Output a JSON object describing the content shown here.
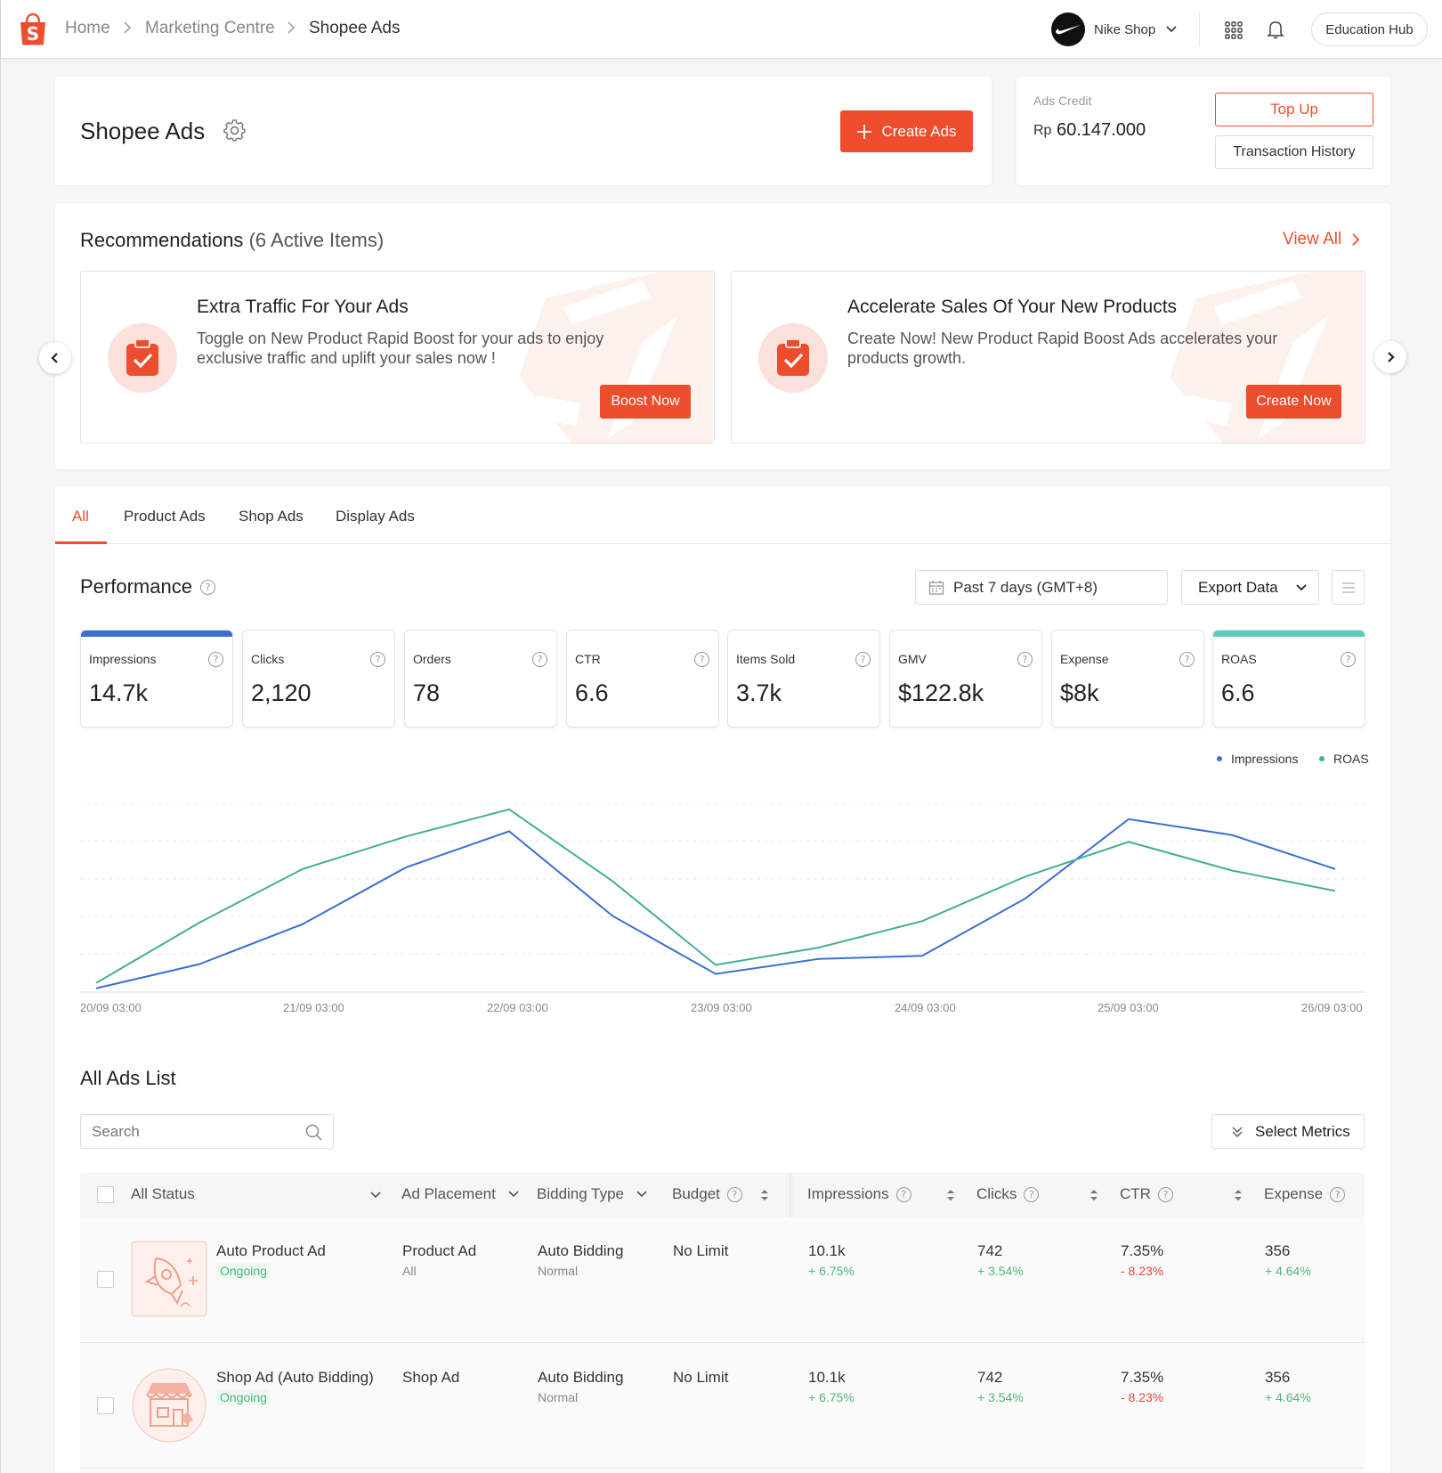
{
  "breadcrumb": {
    "home": "Home",
    "marketing": "Marketing Centre",
    "current": "Shopee Ads"
  },
  "header": {
    "shop_name": "Nike Shop",
    "education_hub": "Education Hub"
  },
  "ads_header": {
    "title": "Shopee Ads",
    "create_label": "Create Ads"
  },
  "credit": {
    "label": "Ads Credit",
    "currency": "Rp",
    "amount": "60.147.000",
    "top_up": "Top Up",
    "history": "Transaction History"
  },
  "recommendations": {
    "title": "Recommendations",
    "count_text": "(6 Active Items)",
    "view_all": "View All",
    "items": [
      {
        "title": "Extra Traffic For Your Ads",
        "desc": "Toggle on New Product Rapid Boost for your ads to enjoy exclusive traffic and uplift your sales now !",
        "button": "Boost Now"
      },
      {
        "title": "Accelerate Sales Of Your New Products",
        "desc": "Create Now! New Product Rapid Boost Ads accelerates your products growth.",
        "button": "Create Now"
      }
    ]
  },
  "tabs": [
    "All",
    "Product Ads",
    "Shop Ads",
    "Display Ads"
  ],
  "performance": {
    "title": "Performance",
    "date_range": "Past 7 days (GMT+8)",
    "export": "Export Data",
    "metrics": [
      {
        "label": "Impressions",
        "value": "14.7k",
        "bar_color": "#3b6fd4"
      },
      {
        "label": "Clicks",
        "value": "2,120"
      },
      {
        "label": "Orders",
        "value": "78"
      },
      {
        "label": "CTR",
        "value": "6.6"
      },
      {
        "label": "Items Sold",
        "value": "3.7k"
      },
      {
        "label": "GMV",
        "value": "$122.8k"
      },
      {
        "label": "Expense",
        "value": "$8k"
      },
      {
        "label": "ROAS",
        "value": "6.6",
        "bar_color": "#5ccbb8"
      }
    ]
  },
  "chart_data": {
    "type": "line",
    "x": [
      "20/09 03:00",
      "",
      "21/09 03:00",
      "",
      "22/09 03:00",
      "",
      "23/09 03:00",
      "",
      "24/09 03:00",
      "",
      "25/09 03:00",
      "",
      "26/09 03:00"
    ],
    "tick_labels": [
      "20/09 03:00",
      "21/09 03:00",
      "22/09 03:00",
      "23/09 03:00",
      "24/09 03:00",
      "25/09 03:00",
      "26/09 03:00"
    ],
    "series": [
      {
        "name": "Impressions",
        "color": "#3b6fd4",
        "values": [
          0.5,
          3.7,
          9.0,
          16.5,
          21.3,
          10.1,
          2.4,
          4.4,
          4.8,
          12.4,
          22.9,
          20.8,
          16.3
        ]
      },
      {
        "name": "ROAS",
        "color": "#44ad96",
        "values": [
          1.2,
          9.2,
          16.3,
          20.6,
          24.2,
          14.7,
          3.6,
          5.9,
          9.4,
          15.3,
          19.9,
          16.1,
          13.4
        ]
      }
    ],
    "ylim": [
      0,
      25
    ],
    "grid": true,
    "legend": "top-right"
  },
  "ads_list": {
    "title": "All Ads List",
    "search_placeholder": "Search",
    "select_metrics": "Select Metrics",
    "columns": {
      "status": "All Status",
      "placement": "Ad Placement",
      "bidding": "Bidding Type",
      "budget": "Budget",
      "impressions": "Impressions",
      "clicks": "Clicks",
      "ctr": "CTR",
      "expense": "Expense"
    },
    "rows": [
      {
        "name": "Auto Product Ad",
        "status": "Ongoing",
        "placement": "Product Ad",
        "placement_sub": "All",
        "bidding": "Auto Bidding",
        "bidding_sub": "Normal",
        "budget": "No Limit",
        "impressions": "10.1k",
        "impressions_delta": "+ 6.75%",
        "clicks": "742",
        "clicks_delta": "+ 3.54%",
        "ctr": "7.35%",
        "ctr_delta": "- 8.23%",
        "expense": "356",
        "expense_delta": "+ 4.64%"
      },
      {
        "name": "Shop Ad (Auto Bidding)",
        "status": "Ongoing",
        "placement": "Shop Ad",
        "placement_sub": "",
        "bidding": "Auto Bidding",
        "bidding_sub": "Normal",
        "budget": "No Limit",
        "impressions": "10.1k",
        "impressions_delta": "+ 6.75%",
        "clicks": "742",
        "clicks_delta": "+ 3.54%",
        "ctr": "7.35%",
        "ctr_delta": "- 8.23%",
        "expense": "356",
        "expense_delta": "+ 4.64%"
      }
    ]
  }
}
